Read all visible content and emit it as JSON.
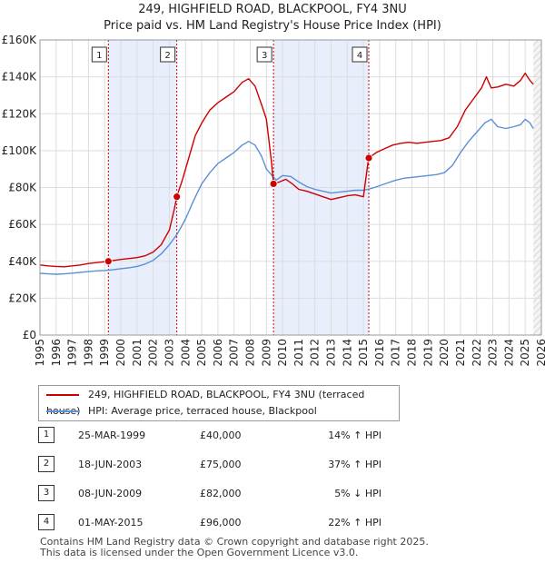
{
  "chart_data": {
    "type": "line",
    "title": "249, HIGHFIELD ROAD, BLACKPOOL, FY4 3NU",
    "subtitle": "Price paid vs. HM Land Registry's House Price Index (HPI)",
    "xlim": [
      1995,
      2026
    ],
    "ylim": [
      0,
      160000
    ],
    "y_ticks": [
      {
        "value": 0,
        "label": "£0"
      },
      {
        "value": 20000,
        "label": "£20K"
      },
      {
        "value": 40000,
        "label": "£40K"
      },
      {
        "value": 60000,
        "label": "£60K"
      },
      {
        "value": 80000,
        "label": "£80K"
      },
      {
        "value": 100000,
        "label": "£100K"
      },
      {
        "value": 120000,
        "label": "£120K"
      },
      {
        "value": 140000,
        "label": "£140K"
      },
      {
        "value": 160000,
        "label": "£160K"
      }
    ],
    "x_ticks": [
      "1995",
      "1996",
      "1997",
      "1998",
      "1999",
      "2000",
      "2001",
      "2002",
      "2003",
      "2004",
      "2005",
      "2006",
      "2007",
      "2008",
      "2009",
      "2010",
      "2011",
      "2012",
      "2013",
      "2014",
      "2015",
      "2016",
      "2017",
      "2018",
      "2019",
      "2020",
      "2021",
      "2022",
      "2023",
      "2024",
      "2025",
      "2026"
    ],
    "grid": true,
    "series": [
      {
        "name": "249, HIGHFIELD ROAD, BLACKPOOL, FY4 3NU (terraced house)",
        "color": "#cc0000",
        "points": [
          [
            1995.0,
            38000
          ],
          [
            1995.5,
            37500
          ],
          [
            1996.0,
            37200
          ],
          [
            1996.5,
            37000
          ],
          [
            1997.0,
            37500
          ],
          [
            1997.5,
            38000
          ],
          [
            1998.0,
            38800
          ],
          [
            1998.5,
            39300
          ],
          [
            1999.23,
            40000
          ],
          [
            1999.6,
            40500
          ],
          [
            2000.0,
            41000
          ],
          [
            2000.5,
            41500
          ],
          [
            2001.0,
            42000
          ],
          [
            2001.5,
            43000
          ],
          [
            2002.0,
            45000
          ],
          [
            2002.5,
            49000
          ],
          [
            2003.0,
            57000
          ],
          [
            2003.3,
            68000
          ],
          [
            2003.46,
            75000
          ],
          [
            2003.8,
            84000
          ],
          [
            2004.2,
            96000
          ],
          [
            2004.6,
            108000
          ],
          [
            2005.0,
            115000
          ],
          [
            2005.5,
            122000
          ],
          [
            2006.0,
            126000
          ],
          [
            2006.5,
            129000
          ],
          [
            2007.0,
            132000
          ],
          [
            2007.5,
            137000
          ],
          [
            2007.9,
            139000
          ],
          [
            2008.3,
            135000
          ],
          [
            2008.7,
            125000
          ],
          [
            2009.0,
            117000
          ],
          [
            2009.3,
            95000
          ],
          [
            2009.44,
            82000
          ],
          [
            2009.8,
            83000
          ],
          [
            2010.2,
            84500
          ],
          [
            2010.6,
            82000
          ],
          [
            2011.0,
            79000
          ],
          [
            2011.5,
            78000
          ],
          [
            2012.0,
            76500
          ],
          [
            2012.5,
            75000
          ],
          [
            2013.0,
            73500
          ],
          [
            2013.5,
            74500
          ],
          [
            2014.0,
            75500
          ],
          [
            2014.5,
            76000
          ],
          [
            2015.0,
            75000
          ],
          [
            2015.32,
            96000
          ],
          [
            2015.8,
            99000
          ],
          [
            2016.3,
            101000
          ],
          [
            2016.8,
            103000
          ],
          [
            2017.3,
            104000
          ],
          [
            2017.8,
            104500
          ],
          [
            2018.3,
            104000
          ],
          [
            2018.8,
            104500
          ],
          [
            2019.3,
            105000
          ],
          [
            2019.8,
            105500
          ],
          [
            2020.3,
            107000
          ],
          [
            2020.8,
            113000
          ],
          [
            2021.3,
            122000
          ],
          [
            2021.8,
            128000
          ],
          [
            2022.3,
            134000
          ],
          [
            2022.6,
            140000
          ],
          [
            2022.9,
            134000
          ],
          [
            2023.3,
            134500
          ],
          [
            2023.8,
            136000
          ],
          [
            2024.3,
            135000
          ],
          [
            2024.7,
            138000
          ],
          [
            2025.0,
            142000
          ],
          [
            2025.3,
            138000
          ],
          [
            2025.5,
            136000
          ]
        ]
      },
      {
        "name": "HPI: Average price, terraced house, Blackpool",
        "color": "#5b8fd6",
        "points": [
          [
            1995.0,
            33500
          ],
          [
            1995.5,
            33200
          ],
          [
            1996.0,
            33000
          ],
          [
            1996.5,
            33200
          ],
          [
            1997.0,
            33600
          ],
          [
            1997.5,
            34000
          ],
          [
            1998.0,
            34400
          ],
          [
            1998.5,
            34800
          ],
          [
            1999.0,
            35000
          ],
          [
            1999.5,
            35400
          ],
          [
            2000.0,
            36000
          ],
          [
            2000.5,
            36500
          ],
          [
            2001.0,
            37200
          ],
          [
            2001.5,
            38500
          ],
          [
            2002.0,
            40500
          ],
          [
            2002.5,
            44000
          ],
          [
            2003.0,
            49000
          ],
          [
            2003.5,
            55000
          ],
          [
            2004.0,
            63000
          ],
          [
            2004.5,
            73000
          ],
          [
            2005.0,
            82000
          ],
          [
            2005.5,
            88000
          ],
          [
            2006.0,
            93000
          ],
          [
            2006.5,
            96000
          ],
          [
            2007.0,
            99000
          ],
          [
            2007.5,
            103000
          ],
          [
            2007.9,
            105000
          ],
          [
            2008.3,
            103000
          ],
          [
            2008.7,
            97000
          ],
          [
            2009.0,
            90000
          ],
          [
            2009.3,
            87000
          ],
          [
            2009.6,
            84000
          ],
          [
            2010.0,
            86500
          ],
          [
            2010.5,
            86000
          ],
          [
            2011.0,
            83000
          ],
          [
            2011.5,
            80500
          ],
          [
            2012.0,
            79000
          ],
          [
            2012.5,
            78000
          ],
          [
            2013.0,
            77000
          ],
          [
            2013.5,
            77500
          ],
          [
            2014.0,
            78000
          ],
          [
            2014.5,
            78500
          ],
          [
            2015.0,
            78500
          ],
          [
            2015.5,
            79500
          ],
          [
            2016.0,
            81000
          ],
          [
            2016.5,
            82500
          ],
          [
            2017.0,
            84000
          ],
          [
            2017.5,
            85000
          ],
          [
            2018.0,
            85500
          ],
          [
            2018.5,
            86000
          ],
          [
            2019.0,
            86500
          ],
          [
            2019.5,
            87000
          ],
          [
            2020.0,
            88000
          ],
          [
            2020.5,
            92000
          ],
          [
            2021.0,
            99000
          ],
          [
            2021.5,
            105000
          ],
          [
            2022.0,
            110000
          ],
          [
            2022.5,
            115000
          ],
          [
            2022.9,
            117000
          ],
          [
            2023.3,
            113000
          ],
          [
            2023.8,
            112000
          ],
          [
            2024.3,
            113000
          ],
          [
            2024.7,
            114000
          ],
          [
            2025.0,
            117000
          ],
          [
            2025.3,
            115000
          ],
          [
            2025.5,
            112000
          ]
        ]
      }
    ],
    "transactions": [
      {
        "num": "1",
        "x": 1999.23,
        "value": 40000,
        "date": "25-MAR-1999",
        "price": "£40,000",
        "hpi": "14% ↑ HPI"
      },
      {
        "num": "2",
        "x": 2003.46,
        "value": 75000,
        "date": "18-JUN-2003",
        "price": "£75,000",
        "hpi": "37% ↑ HPI"
      },
      {
        "num": "3",
        "x": 2009.44,
        "value": 82000,
        "date": "08-JUN-2009",
        "price": "£82,000",
        "hpi": "5% ↓ HPI"
      },
      {
        "num": "4",
        "x": 2015.33,
        "value": 96000,
        "date": "01-MAY-2015",
        "price": "£96,000",
        "hpi": "22% ↑ HPI"
      }
    ],
    "shaded_ranges": [
      [
        1999.23,
        2003.46
      ],
      [
        2009.44,
        2015.33
      ]
    ],
    "forecast_from": 2025.5,
    "colors": {
      "shade": "#e8eefb",
      "forecast": "#eeeeee",
      "grid": "#dddddd",
      "vline": "#cc0000"
    }
  },
  "footer": {
    "line1": "Contains HM Land Registry data © Crown copyright and database right 2025.",
    "line2": "This data is licensed under the Open Government Licence v3.0."
  }
}
